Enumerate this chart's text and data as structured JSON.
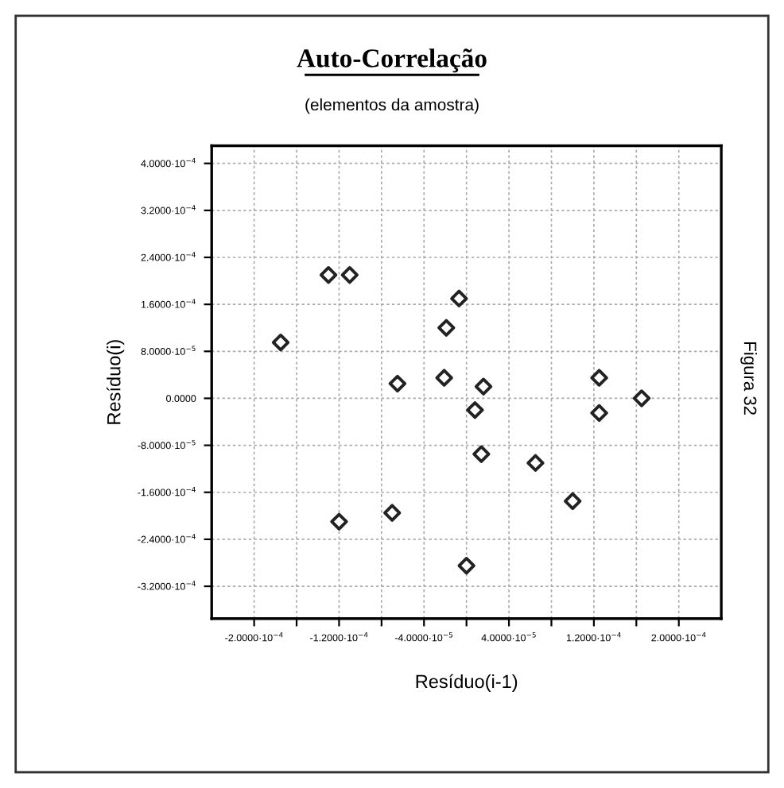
{
  "chart_data": {
    "type": "scatter",
    "title": "Auto-Correlação",
    "subtitle": "(elementos da amostra)",
    "xlabel": "Resíduo(i-1)",
    "ylabel": "Resíduo(i)",
    "annotations": [
      "Figura 32"
    ],
    "x": [
      -0.00013,
      -0.00011,
      -7e-06,
      -1.9e-05,
      -0.000175,
      -6.5e-05,
      -2.1e-05,
      1.6e-05,
      8e-06,
      0.000125,
      0.000125,
      0.000165,
      1.4e-05,
      6.5e-05,
      0.0001,
      -0.00012,
      -7e-05,
      0
    ],
    "series": [
      {
        "color": "#222222",
        "values": [
          0.00021,
          0.00021,
          0.00017,
          0.00012,
          9.5e-05,
          2.5e-05,
          3.5e-05,
          2e-05,
          -2e-05,
          3.5e-05,
          -2.5e-05,
          0,
          -9.5e-05,
          -0.00011,
          -0.000175,
          -0.00021,
          -0.000195,
          -0.000285
        ]
      }
    ],
    "marker": "diamond",
    "xlim": [
      -0.00024,
      0.00024
    ],
    "xticks": [
      {
        "value": -0.0002,
        "label": "-2.0000·10$^{−4}$"
      },
      {
        "value": -0.00016,
        "label": null
      },
      {
        "value": -0.00012,
        "label": "-1.2000·10$^{−4}$"
      },
      {
        "value": -8e-05,
        "label": null
      },
      {
        "value": -4e-05,
        "label": "-4.0000·10$^{−5}$"
      },
      {
        "value": 0,
        "label": null
      },
      {
        "value": 4e-05,
        "label": "4.0000·10$^{−5}$"
      },
      {
        "value": 8e-05,
        "label": null
      },
      {
        "value": 0.00012,
        "label": "1.2000·10$^{−4}$"
      },
      {
        "value": 0.00016,
        "label": null
      },
      {
        "value": 0.0002,
        "label": "2.0000·10$^{−4}$"
      }
    ],
    "ylim": [
      -0.000375,
      0.00043
    ],
    "yticks": [
      {
        "value": -0.00032,
        "label": "-3.2000·10$^{−4}$"
      },
      {
        "value": -0.00024,
        "label": "-2.4000·10$^{−4}$"
      },
      {
        "value": -0.00016,
        "label": "-1.6000·10$^{−4}$"
      },
      {
        "value": -8e-05,
        "label": "-8.0000·10$^{−5}$"
      },
      {
        "value": 0,
        "label": "0.0000"
      },
      {
        "value": 8e-05,
        "label": "8.0000·10$^{−5}$"
      },
      {
        "value": 0.00016,
        "label": "1.6000·10$^{−4}$"
      },
      {
        "value": 0.00024,
        "label": "2.4000·10$^{−4}$"
      },
      {
        "value": 0.00032,
        "label": "3.2000·10$^{−4}$"
      },
      {
        "value": 0.0004,
        "label": "4.0000·10$^{−4}$"
      }
    ],
    "grid": true
  }
}
